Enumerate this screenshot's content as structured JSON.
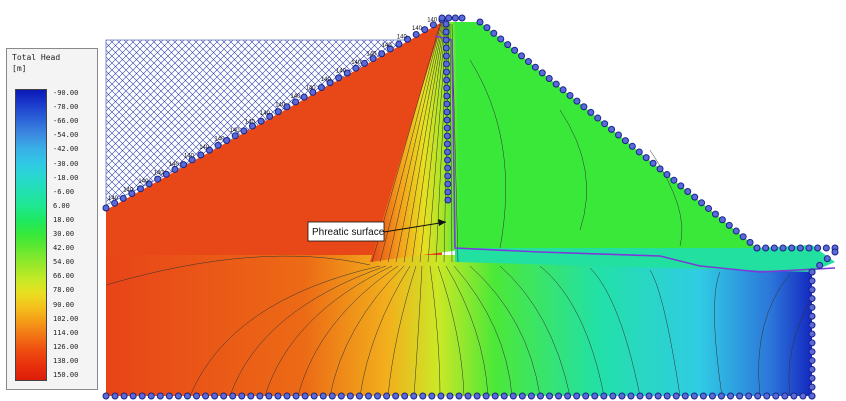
{
  "legend": {
    "title": "Total Head",
    "unit": "[m]",
    "labels": [
      "-90.00",
      "-78.00",
      "-66.00",
      "-54.00",
      "-42.00",
      "-30.00",
      "-18.00",
      "-6.00",
      "6.00",
      "18.00",
      "30.00",
      "42.00",
      "54.00",
      "66.00",
      "78.00",
      "90.00",
      "102.00",
      "114.00",
      "126.00",
      "138.00",
      "150.00"
    ],
    "colors": [
      "#0a18b5",
      "#1c3ccc",
      "#2c62d8",
      "#3c88e0",
      "#3aaee6",
      "#30c8e6",
      "#28d8d0",
      "#22e0b0",
      "#1ee890",
      "#1ee860",
      "#38e838",
      "#66e830",
      "#96e82a",
      "#c2ea26",
      "#e8e020",
      "#f4c01c",
      "#f49a18",
      "#f27214",
      "#ee4c10",
      "#e8300c",
      "#dc1c08"
    ]
  },
  "diagram": {
    "annotation": "Phreatic surface",
    "boundary_head_label": "140",
    "zones": {
      "upstream_shell": "#e84818",
      "downstream_shell": "#3ae83a",
      "reservoir_hatch": "#3040b0",
      "boundary_node": "#2a3aa8"
    }
  }
}
